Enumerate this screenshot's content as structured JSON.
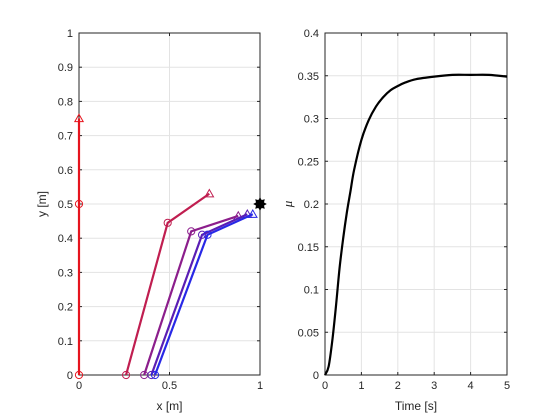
{
  "chart_data": [
    {
      "type": "line",
      "xlabel": "x [m]",
      "ylabel": "y [m]",
      "xlim": [
        0,
        1
      ],
      "ylim": [
        0,
        1
      ],
      "xticks": [
        "0",
        "0.5",
        "1"
      ],
      "yticks": [
        "0",
        "0.1",
        "0.2",
        "0.3",
        "0.4",
        "0.5",
        "0.6",
        "0.7",
        "0.8",
        "0.9",
        "1"
      ],
      "grid": true,
      "target_point": {
        "x": 1.0,
        "y": 0.5
      },
      "series": [
        {
          "color": "#e6141e",
          "joints": [
            [
              0,
              0
            ],
            [
              0,
              0.5
            ],
            [
              0,
              0.75
            ]
          ]
        },
        {
          "color": "#c01e50",
          "joints": [
            [
              0.26,
              0
            ],
            [
              0.49,
              0.445
            ],
            [
              0.72,
              0.53
            ]
          ]
        },
        {
          "color": "#8c1e8c",
          "joints": [
            [
              0.36,
              0
            ],
            [
              0.62,
              0.42
            ],
            [
              0.88,
              0.465
            ]
          ]
        },
        {
          "color": "#5a1eb4",
          "joints": [
            [
              0.4,
              0
            ],
            [
              0.68,
              0.41
            ],
            [
              0.93,
              0.47
            ]
          ]
        },
        {
          "color": "#2828e6",
          "joints": [
            [
              0.42,
              0
            ],
            [
              0.71,
              0.41
            ],
            [
              0.96,
              0.47
            ]
          ]
        }
      ]
    },
    {
      "type": "line",
      "xlabel": "Time [s]",
      "ylabel": "μ",
      "xlim": [
        0,
        5
      ],
      "ylim": [
        0,
        0.4
      ],
      "xticks": [
        "0",
        "1",
        "2",
        "3",
        "4",
        "5"
      ],
      "yticks": [
        "0",
        "0.05",
        "0.1",
        "0.15",
        "0.2",
        "0.25",
        "0.3",
        "0.35",
        "0.4"
      ],
      "grid": true,
      "series": [
        {
          "color": "#000000",
          "x": [
            0,
            0.1,
            0.2,
            0.3,
            0.4,
            0.5,
            0.6,
            0.7,
            0.8,
            1.0,
            1.2,
            1.4,
            1.6,
            1.8,
            2.0,
            2.2,
            2.5,
            3.0,
            3.5,
            4.0,
            4.5,
            5.0
          ],
          "y": [
            0,
            0.01,
            0.04,
            0.08,
            0.125,
            0.16,
            0.19,
            0.215,
            0.24,
            0.275,
            0.298,
            0.314,
            0.325,
            0.333,
            0.338,
            0.342,
            0.346,
            0.349,
            0.351,
            0.351,
            0.351,
            0.349
          ]
        }
      ]
    }
  ]
}
